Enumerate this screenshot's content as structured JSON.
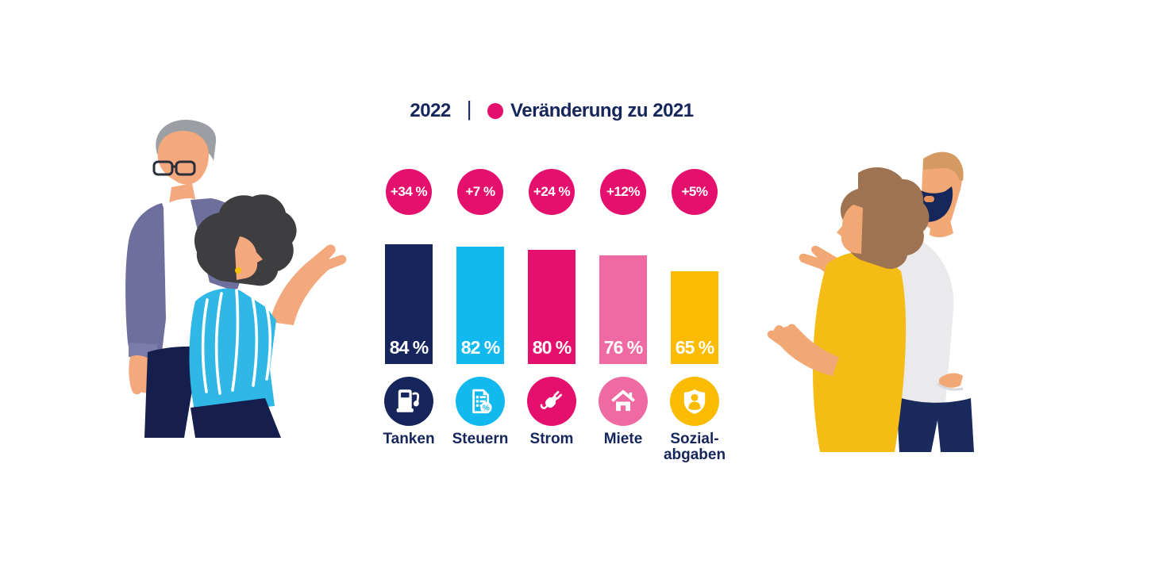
{
  "page": {
    "background": "#FFFFFF"
  },
  "title_row": {
    "year": "2022",
    "separator": "|",
    "legend_label": "Veränderung zu 2021",
    "dot_color": "#E5106D"
  },
  "colors": {
    "navy": "#16265C",
    "cyan": "#12B9EE",
    "magenta": "#E5106D",
    "pink": "#EF6AA2",
    "yellow": "#FABB00",
    "text": "#16265C"
  },
  "chart_data": {
    "type": "bar",
    "title": "2022 | Veränderung zu 2021",
    "categories": [
      "Tanken",
      "Steuern",
      "Strom",
      "Miete",
      "Sozialabgaben"
    ],
    "series": [
      {
        "name": "2022",
        "unit": "%",
        "values": [
          84,
          82,
          80,
          76,
          65
        ]
      },
      {
        "name": "Veränderung zu 2021",
        "unit": "%",
        "values": [
          34,
          7,
          24,
          12,
          5
        ]
      }
    ],
    "value_labels": [
      "84 %",
      "82 %",
      "80 %",
      "76 %",
      "65 %"
    ],
    "delta_labels": [
      "+34 %",
      "+7 %",
      "+24 %",
      "+12%",
      "+5%"
    ],
    "bar_colors": [
      "#16265C",
      "#12B9EE",
      "#E5106D",
      "#EF6AA2",
      "#FABB00"
    ],
    "delta_badge_color": "#E5106D",
    "ylim": [
      0,
      100
    ],
    "grid": false,
    "legend_position": "top"
  },
  "columns": [
    {
      "delta": "+34 %",
      "value": 84,
      "value_label": "84 %",
      "label_lines": [
        "Tanken"
      ],
      "color": "#16265C",
      "icon": "fuel-pump-icon",
      "icon_ref": "icon-fuel"
    },
    {
      "delta": "+7 %",
      "value": 82,
      "value_label": "82 %",
      "label_lines": [
        "Steuern"
      ],
      "color": "#12B9EE",
      "icon": "tax-document-icon",
      "icon_ref": "icon-tax"
    },
    {
      "delta": "+24 %",
      "value": 80,
      "value_label": "80 %",
      "label_lines": [
        "Strom"
      ],
      "color": "#E5106D",
      "icon": "power-plug-icon",
      "icon_ref": "icon-plug"
    },
    {
      "delta": "+12%",
      "value": 76,
      "value_label": "76 %",
      "label_lines": [
        "Miete"
      ],
      "color": "#EF6AA2",
      "icon": "house-icon",
      "icon_ref": "icon-house"
    },
    {
      "delta": "+5%",
      "value": 65,
      "value_label": "65 %",
      "label_lines": [
        "Sozial-",
        "abgaben"
      ],
      "color": "#FABB00",
      "icon": "shield-person-icon",
      "icon_ref": "icon-shield"
    }
  ],
  "illustrations": {
    "left": "couple-pointing-at-chart",
    "right": "couple-discussing-chart"
  }
}
